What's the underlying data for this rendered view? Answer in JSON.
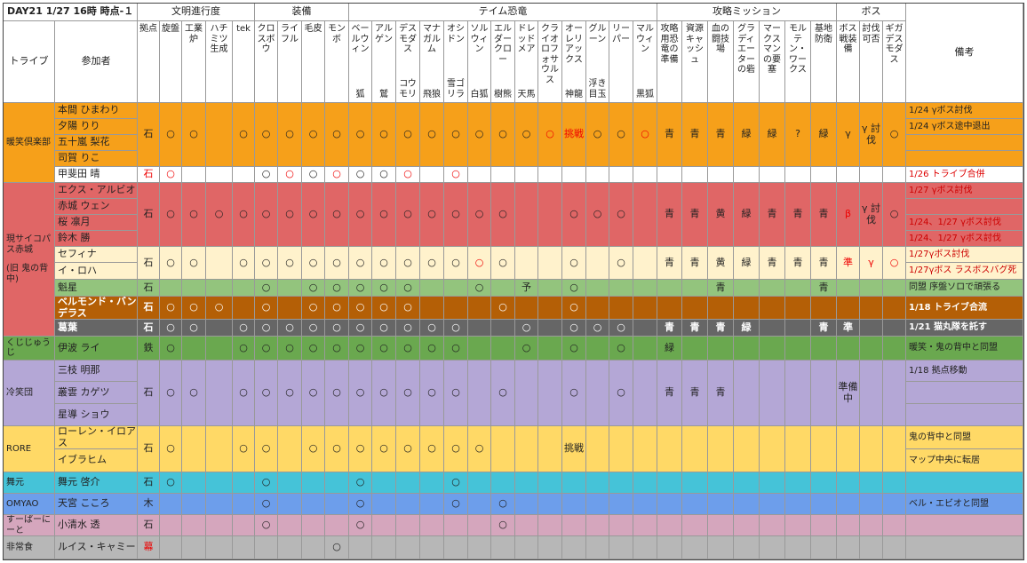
{
  "title": "DAY21 1/27  16時 時点-１",
  "headers": {
    "tribe": "トライブ",
    "member": "参加者",
    "remarks": "備考"
  },
  "groups": [
    {
      "label": "文明進行度",
      "columns": [
        {
          "name": "拠点"
        },
        {
          "name": "旋盤"
        },
        {
          "name": "工業炉"
        },
        {
          "name": "ハチミツ生成"
        },
        {
          "name": "tek"
        }
      ]
    },
    {
      "label": "装備",
      "columns": [
        {
          "name": "クロスボウ"
        },
        {
          "name": "ライフル"
        },
        {
          "name": "毛皮"
        },
        {
          "name": "モンボ"
        }
      ]
    },
    {
      "label": "テイム恐竜",
      "columns": [
        {
          "name": "ベールウィン",
          "sub": "狐"
        },
        {
          "name": "アルゲン",
          "sub": "鷲"
        },
        {
          "name": "デスモダス",
          "sub": "コウモリ"
        },
        {
          "name": "マナガルム",
          "sub": "飛狼"
        },
        {
          "name": "オシドン",
          "sub": "雪ゴリラ"
        },
        {
          "name": "ソルウィン",
          "sub": "白狐"
        },
        {
          "name": "エルダークロー",
          "sub": "樹熊"
        },
        {
          "name": "ドレッドメア",
          "sub": "天馬"
        },
        {
          "name": "クライオロフォサウルス"
        },
        {
          "name": "オーレリアックス",
          "sub": "神龍"
        },
        {
          "name": "グルーン",
          "sub": "浮き目玉"
        },
        {
          "name": "リーパー"
        },
        {
          "name": "マルウィン",
          "sub": "黒狐"
        }
      ]
    },
    {
      "label": "攻略ミッション",
      "columns": [
        {
          "name": "攻略用恐竜の準備"
        },
        {
          "name": "資源キャッシュ"
        },
        {
          "name": "血の闘技場"
        },
        {
          "name": "グラディエーターの砦"
        },
        {
          "name": "マークスマンの要塞"
        },
        {
          "name": "モルテン・ワークス"
        },
        {
          "name": "基地防衛"
        }
      ]
    },
    {
      "label": "ボス",
      "columns": [
        {
          "name": "ボス戦装備"
        },
        {
          "name": "討伐可否"
        },
        {
          "name": "ギガデスモダス"
        }
      ]
    }
  ],
  "tribes": [
    {
      "name": "暖笑倶楽部",
      "color": "#f6a01a",
      "blocks": [
        {
          "color": "#f6a01a",
          "members": [
            "本間 ひまわり",
            "夕陽 りり",
            "五十嵐 梨花",
            "司賀 りこ"
          ],
          "cells": [
            "石",
            "○",
            "○",
            null,
            "○",
            "○",
            "○",
            "○",
            "○",
            "○",
            "○",
            "○",
            "○",
            "○",
            "○",
            "○",
            "○",
            "○",
            "挑戦",
            "○",
            "○",
            "○",
            "青",
            "青",
            "青",
            "緑",
            "緑",
            "?",
            "緑",
            "γ",
            "γ 討伐",
            "○"
          ],
          "red": [
            17,
            18,
            21
          ],
          "remarks": [
            "1/24 γボス討伐",
            "1/24 γボス途中退出",
            null,
            null
          ],
          "remark_color": "#222"
        },
        {
          "color": "#ffffff",
          "members": [
            "甲斐田 晴"
          ],
          "cells": [
            "石",
            "○",
            null,
            null,
            null,
            "○",
            "○",
            "○",
            "○",
            "○",
            "○",
            "○",
            null,
            "○",
            null,
            null,
            null,
            null,
            null,
            null,
            null,
            null,
            null,
            null,
            null,
            null,
            null,
            null,
            null,
            null,
            null,
            null
          ],
          "red": [
            0,
            1,
            6,
            8,
            11,
            13
          ],
          "remarks": [
            "1/26 トライブ合併"
          ],
          "remark_color": "#d00"
        }
      ]
    },
    {
      "name": "現サイコパス赤城",
      "note": "(旧 鬼の背中)",
      "color": "#e06666",
      "blocks": [
        {
          "color": "#e06666",
          "members": [
            "エクス・アルビオ",
            "赤城 ウェン",
            "桜 凛月",
            "鈴木 勝"
          ],
          "cells": [
            "石",
            "○",
            "○",
            "○",
            "○",
            "○",
            "○",
            "○",
            "○",
            "○",
            "○",
            "○",
            "○",
            "○",
            "○",
            "○",
            null,
            null,
            "○",
            "○",
            "○",
            null,
            "青",
            "青",
            "黄",
            "緑",
            "青",
            "青",
            "青",
            "β",
            "γ 討伐",
            "○"
          ],
          "red": [
            29
          ],
          "remarks": [
            "1/27 γボス討伐",
            null,
            "1/24、1/27 γボス討伐",
            "1/24、1/27 γボス討伐"
          ],
          "remark_color": "#c00"
        },
        {
          "color": "#fff2cc",
          "members": [
            "セフィナ",
            "イ・ロハ"
          ],
          "cells": [
            "石",
            "○",
            "○",
            null,
            "○",
            "○",
            "○",
            "○",
            "○",
            "○",
            "○",
            "○",
            "○",
            "○",
            "○",
            "○",
            null,
            null,
            "○",
            null,
            "○",
            null,
            "青",
            "青",
            "黄",
            "緑",
            "青",
            "青",
            "青",
            "準",
            "γ",
            "○"
          ],
          "red": [
            14,
            29,
            30,
            31
          ],
          "remarks": [
            "1/27γボス討伐",
            "1/27γボス ラスボスバグ死"
          ],
          "remark_color": "#c00"
        },
        {
          "color": "#93c47d",
          "members": [
            "魁星"
          ],
          "cells": [
            "石",
            null,
            null,
            null,
            null,
            "○",
            null,
            "○",
            "○",
            "○",
            "○",
            "○",
            null,
            null,
            "○",
            null,
            "予",
            null,
            "○",
            null,
            null,
            null,
            null,
            null,
            "青",
            null,
            null,
            null,
            "青",
            null,
            null,
            null
          ],
          "red": [],
          "remarks": [
            "同盟  序盤ソロで頑張る"
          ],
          "remark_color": "#222"
        },
        {
          "color": "#b45f06",
          "text_color": "#ffffff",
          "bold": true,
          "members": [
            "ベルモンド・バンデラス"
          ],
          "cells": [
            "石",
            "○",
            "○",
            "○",
            null,
            "○",
            null,
            "○",
            "○",
            "○",
            "○",
            "○",
            null,
            null,
            null,
            "○",
            null,
            null,
            "○",
            null,
            null,
            null,
            null,
            null,
            null,
            null,
            null,
            null,
            null,
            null,
            null,
            null
          ],
          "red": [],
          "remarks": [
            "1/18 トライブ合流"
          ],
          "remark_color": "#ffffff"
        },
        {
          "color": "#666666",
          "text_color": "#ffffff",
          "bold": true,
          "members": [
            "葛葉"
          ],
          "cells": [
            "石",
            "○",
            "○",
            null,
            "○",
            "○",
            "○",
            "○",
            "○",
            "○",
            "○",
            "○",
            "○",
            "○",
            null,
            null,
            "○",
            null,
            "○",
            "○",
            "○",
            null,
            "青",
            "青",
            "青",
            "緑",
            null,
            null,
            "青",
            "準",
            null,
            null
          ],
          "red": [],
          "remarks": [
            "1/21 猫丸隊を託す"
          ],
          "remark_color": "#ffffff"
        }
      ]
    },
    {
      "name": "くじじゅうじ",
      "color": "#6aa84f",
      "blocks": [
        {
          "color": "#6aa84f",
          "members": [
            "伊波 ライ"
          ],
          "cells": [
            "鉄",
            "○",
            null,
            null,
            "○",
            "○",
            "○",
            "○",
            "○",
            "○",
            "○",
            "○",
            "○",
            "○",
            null,
            null,
            "○",
            null,
            "○",
            null,
            "○",
            null,
            "緑",
            null,
            null,
            null,
            null,
            null,
            null,
            null,
            null,
            null
          ],
          "red": [],
          "remarks": [
            "暖笑・鬼の背中と同盟"
          ],
          "remark_color": "#222"
        }
      ]
    },
    {
      "name": "冷笑団",
      "color": "#b4a7d6",
      "blocks": [
        {
          "color": "#b4a7d6",
          "members": [
            "三枝 明那",
            "叢雲 カゲツ",
            "星導 ショウ"
          ],
          "cells": [
            "石",
            "○",
            "○",
            null,
            "○",
            "○",
            "○",
            "○",
            "○",
            "○",
            "○",
            "○",
            "○",
            "○",
            null,
            "○",
            null,
            null,
            "○",
            null,
            "○",
            null,
            "青",
            "青",
            "青",
            null,
            null,
            null,
            null,
            "準備中",
            null,
            null
          ],
          "red": [],
          "remarks": [
            "1/18 拠点移動",
            null,
            null
          ],
          "remark_color": "#222"
        }
      ]
    },
    {
      "name": "RORE",
      "color": "#ffd966",
      "blocks": [
        {
          "color": "#ffd966",
          "members": [
            "ローレン・イロアス",
            "イブラヒム"
          ],
          "cells": [
            "石",
            "○",
            null,
            null,
            "○",
            "○",
            null,
            "○",
            "○",
            "○",
            "○",
            "○",
            "○",
            "○",
            "○",
            null,
            null,
            null,
            "挑戦",
            null,
            null,
            null,
            null,
            null,
            null,
            null,
            null,
            null,
            null,
            null,
            null,
            null
          ],
          "red": [],
          "remarks": [
            "鬼の背中と同盟",
            "マップ中央に転居"
          ],
          "remark_color": "#222"
        }
      ]
    },
    {
      "name": "舞元",
      "color": "#45c3d8",
      "blocks": [
        {
          "color": "#45c3d8",
          "members": [
            "舞元 啓介"
          ],
          "cells": [
            "石",
            "○",
            null,
            null,
            null,
            "○",
            null,
            null,
            null,
            "○",
            null,
            null,
            null,
            "○",
            null,
            null,
            null,
            null,
            null,
            null,
            null,
            null,
            null,
            null,
            null,
            null,
            null,
            null,
            null,
            null,
            null,
            null
          ],
          "red": [],
          "remarks": [
            null
          ],
          "remark_color": "#222"
        }
      ]
    },
    {
      "name": "OMYAO",
      "color": "#6d9eeb",
      "blocks": [
        {
          "color": "#6d9eeb",
          "members": [
            "天宮 こころ"
          ],
          "cells": [
            "木",
            null,
            null,
            null,
            null,
            "○",
            null,
            null,
            null,
            "○",
            null,
            null,
            null,
            "○",
            null,
            "○",
            null,
            null,
            null,
            null,
            null,
            null,
            null,
            null,
            null,
            null,
            null,
            null,
            null,
            null,
            null,
            null
          ],
          "red": [],
          "remarks": [
            "ベル・エビオと同盟"
          ],
          "remark_color": "#222"
        }
      ]
    },
    {
      "name": "すーぱーにーと",
      "color": "#d5a6bd",
      "blocks": [
        {
          "color": "#d5a6bd",
          "members": [
            "小清水 透"
          ],
          "cells": [
            "石",
            null,
            null,
            null,
            null,
            "○",
            null,
            null,
            null,
            "○",
            null,
            null,
            null,
            null,
            null,
            "○",
            null,
            null,
            null,
            null,
            null,
            null,
            null,
            null,
            null,
            null,
            null,
            null,
            null,
            null,
            null,
            null
          ],
          "red": [],
          "remarks": [
            null
          ],
          "remark_color": "#222"
        }
      ]
    },
    {
      "name": "非常食",
      "color": "#b7b7b7",
      "blocks": [
        {
          "color": "#b7b7b7",
          "members": [
            "ルイス・キャミー"
          ],
          "cells": [
            "幕",
            null,
            null,
            null,
            null,
            null,
            null,
            null,
            "○",
            null,
            null,
            null,
            null,
            null,
            null,
            null,
            null,
            null,
            null,
            null,
            null,
            null,
            null,
            null,
            null,
            null,
            null,
            null,
            null,
            null,
            null,
            null
          ],
          "red": [
            0
          ],
          "remarks": [
            null
          ],
          "remark_color": "#222"
        }
      ]
    }
  ]
}
